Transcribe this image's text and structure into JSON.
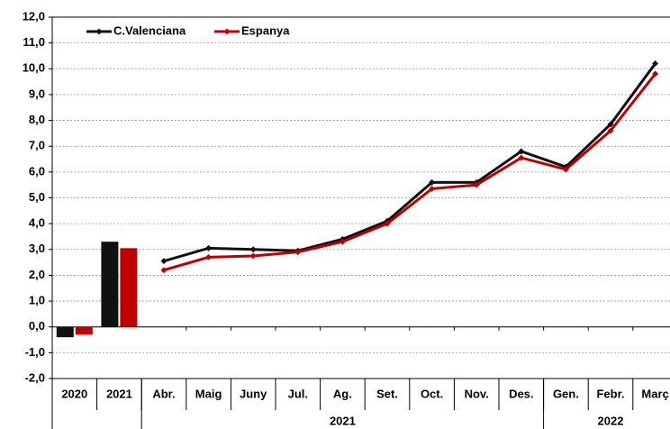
{
  "chart_data": {
    "type": "bar-line",
    "bar_categories": [
      "2020",
      "2021"
    ],
    "line_categories": [
      "Abr.",
      "Maig",
      "Juny",
      "Jul.",
      "Ag.",
      "Set.",
      "Oct.",
      "Nov.",
      "Des.",
      "Gen.",
      "Febr.",
      "Març"
    ],
    "groups": [
      "2021",
      "2022"
    ],
    "series": [
      {
        "name": "C.Valenciana",
        "color": "#111111",
        "bar_values": [
          -0.4,
          3.3
        ],
        "values": [
          2.55,
          3.05,
          3.0,
          2.95,
          3.4,
          4.1,
          5.6,
          5.6,
          6.8,
          6.2,
          7.85,
          10.2
        ]
      },
      {
        "name": "Espanya",
        "color": "#c00000",
        "bar_values": [
          -0.3,
          3.05
        ],
        "values": [
          2.2,
          2.7,
          2.75,
          2.9,
          3.3,
          4.0,
          5.35,
          5.5,
          6.55,
          6.1,
          7.6,
          9.8
        ]
      }
    ],
    "ylim": [
      -2,
      12
    ],
    "yticks": [
      {
        "value": -2,
        "label": "-2,0"
      },
      {
        "value": -1,
        "label": "-1,0"
      },
      {
        "value": 0,
        "label": "0,0"
      },
      {
        "value": 1,
        "label": "1,0"
      },
      {
        "value": 2,
        "label": "2,0"
      },
      {
        "value": 3,
        "label": "3,0"
      },
      {
        "value": 4,
        "label": "4,0"
      },
      {
        "value": 5,
        "label": "5,0"
      },
      {
        "value": 6,
        "label": "6,0"
      },
      {
        "value": 7,
        "label": "7,0"
      },
      {
        "value": 8,
        "label": "8,0"
      },
      {
        "value": 9,
        "label": "9,0"
      },
      {
        "value": 10,
        "label": "10,0"
      },
      {
        "value": 11,
        "label": "11,0"
      },
      {
        "value": 12,
        "label": "12,0"
      }
    ],
    "grid": true,
    "legend": "top-left"
  }
}
